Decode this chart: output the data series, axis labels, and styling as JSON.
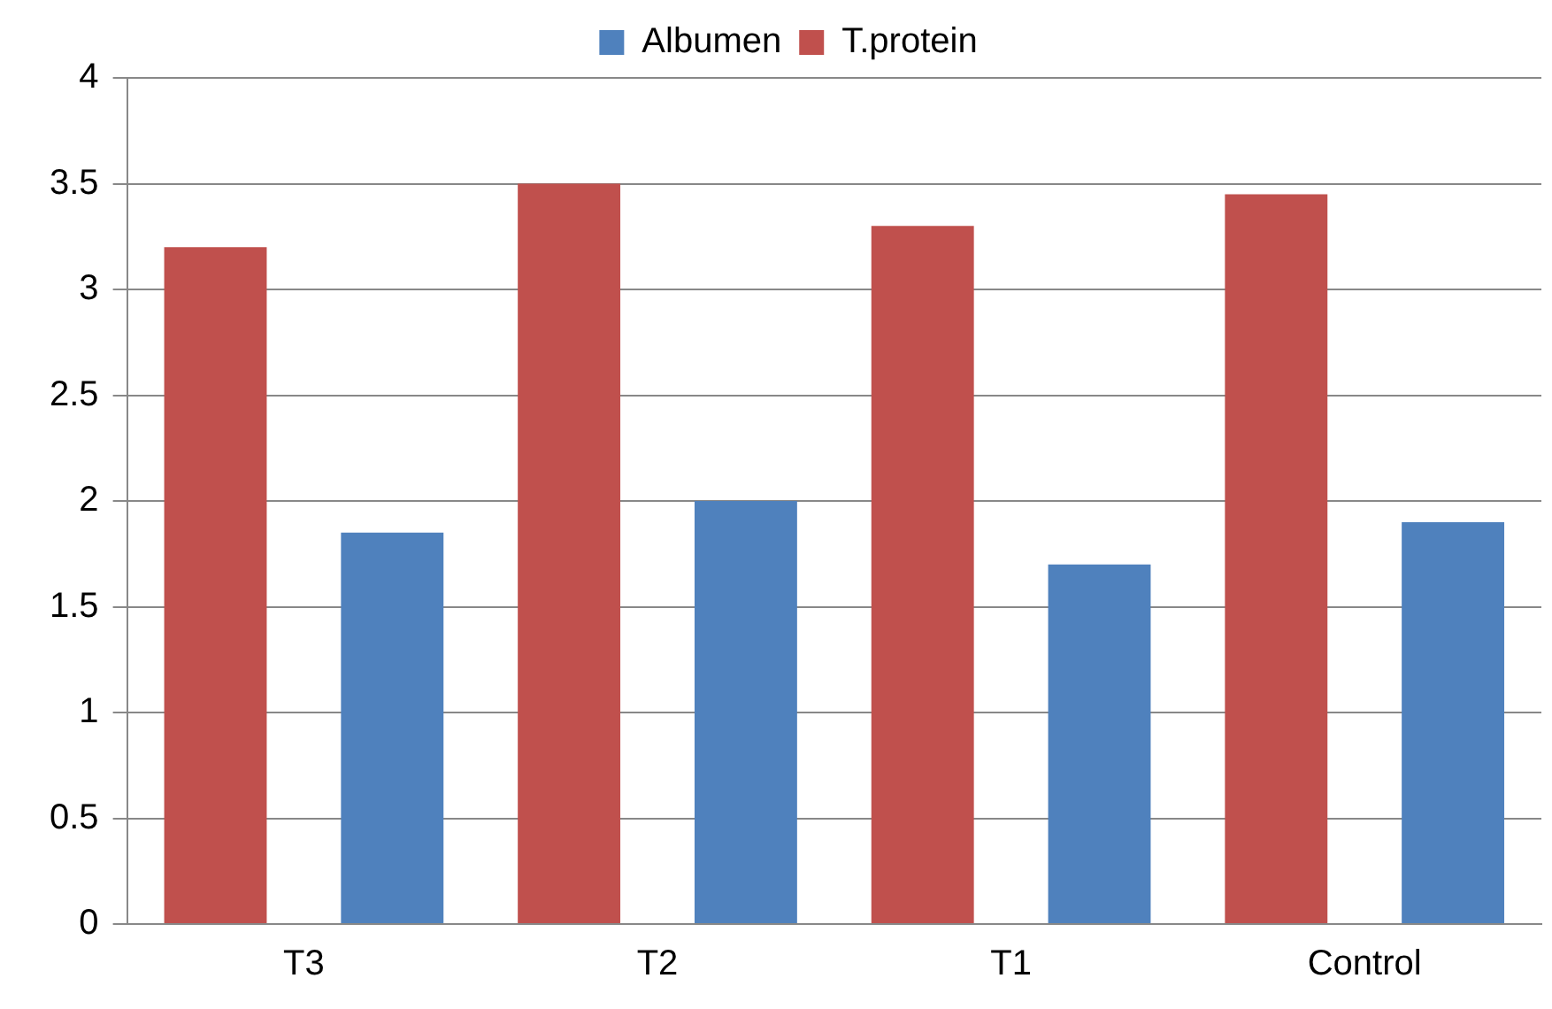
{
  "chart_data": {
    "type": "bar",
    "categories": [
      "T3",
      "T2",
      "T1",
      "Control"
    ],
    "series": [
      {
        "name": "T.protein",
        "color": "#c0504d",
        "values": [
          3.2,
          3.5,
          3.3,
          3.45
        ]
      },
      {
        "name": "Albumen",
        "color": "#4f81bd",
        "values": [
          1.85,
          2.0,
          1.7,
          1.9
        ]
      }
    ],
    "ylim": [
      0,
      4
    ],
    "yticks": [
      0,
      {
        "value": 0.5,
        "label": "0.5"
      },
      1,
      {
        "value": 1.5,
        "label": "1.5"
      },
      2,
      {
        "value": 2.5,
        "label": "2.5"
      },
      3,
      {
        "value": 3.5,
        "label": "3.5"
      },
      4
    ],
    "grid": "y",
    "legend": "top"
  }
}
